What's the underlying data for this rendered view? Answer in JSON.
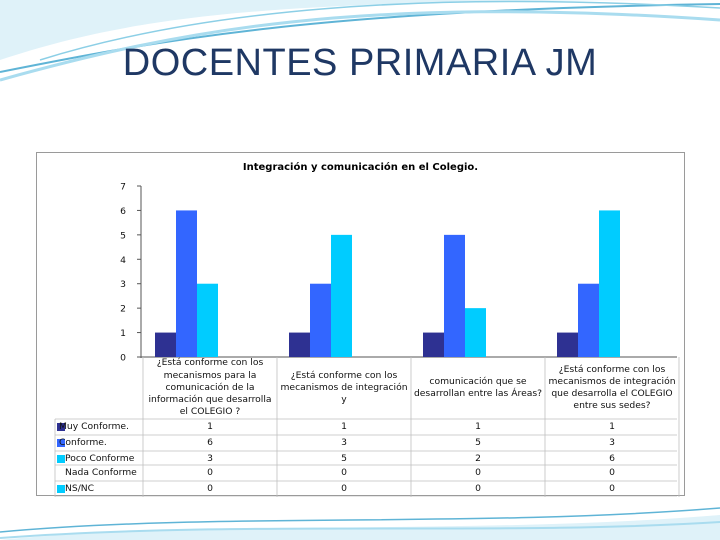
{
  "slide": {
    "title": "DOCENTES PRIMARIA JM"
  },
  "colors": {
    "title": "#1f3864",
    "wave_light": "#a9dcef",
    "wave_dark": "#5fb4d6"
  },
  "chart_data": {
    "type": "bar",
    "title": "Integración y comunicación en el Colegio.",
    "xlabel": "",
    "ylabel": "",
    "ylim": [
      0,
      7
    ],
    "yticks": [
      "0",
      "1",
      "2",
      "3",
      "4",
      "5",
      "6",
      "7"
    ],
    "grid": false,
    "legend": "table-left",
    "categories": [
      "¿Está conforme con los mecanismos para la comunicación de la información que desarrolla el COLEGIO ?",
      "¿Está conforme con los mecanismos de integración y",
      "comunicación que se desarrollan entre las Áreas?",
      "¿Está conforme con los mecanismos de integración que desarrolla el COLEGIO entre sus sedes?"
    ],
    "series": [
      {
        "name": "Muy Conforme.",
        "color": "#2e3192",
        "values": [
          1,
          1,
          1,
          1
        ]
      },
      {
        "name": "Conforme.",
        "color": "#3366ff",
        "values": [
          6,
          3,
          5,
          3
        ]
      },
      {
        "name": "Poco Conforme",
        "color": "#00ccff",
        "values": [
          3,
          5,
          2,
          6
        ]
      },
      {
        "name": "Nada Conforme",
        "color": "#ffffff",
        "values": [
          0,
          0,
          0,
          0
        ]
      },
      {
        "name": "NS/NC",
        "color": "#00ccff",
        "values": [
          0,
          0,
          0,
          0
        ]
      }
    ]
  }
}
